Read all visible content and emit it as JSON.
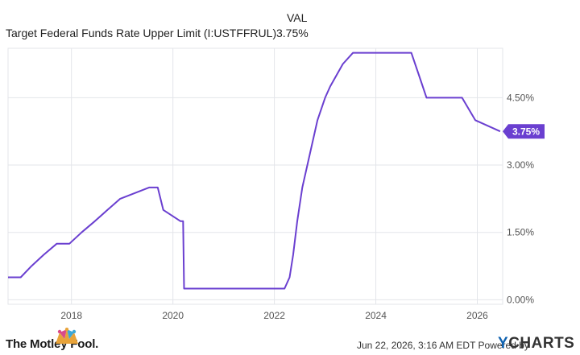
{
  "header": {
    "col_label": "VAL",
    "series_name": "Target Federal Funds Rate Upper Limit (I:USTFFRUL)",
    "series_value": "3.75%"
  },
  "footer": {
    "brand": "The Motley Fool.",
    "timestamp": "Jun 22, 2026, 3:16 AM EDT Powered by",
    "chart_provider": "YCHARTS"
  },
  "colors": {
    "line": "#6a3fd0",
    "grid": "#e3e5ea",
    "axis_text": "#555555",
    "badge": "#6a3fd0"
  },
  "chart_data": {
    "type": "line",
    "title": "",
    "xlabel": "",
    "ylabel": "",
    "x_ticks": [
      "2018",
      "2020",
      "2022",
      "2024",
      "2026"
    ],
    "y_ticks": [
      "0.00%",
      "1.50%",
      "3.00%",
      "4.50%"
    ],
    "xlim": [
      2016.75,
      2026.5
    ],
    "ylim": [
      -0.1,
      5.6
    ],
    "grid": true,
    "last_value_label": "3.75%",
    "series": [
      {
        "name": "Target Federal Funds Rate Upper Limit (I:USTFFRUL)",
        "x": [
          2016.75,
          2017.0,
          2017.21,
          2017.45,
          2017.71,
          2017.96,
          2018.2,
          2018.46,
          2018.71,
          2018.96,
          2019.53,
          2019.7,
          2019.81,
          2020.15,
          2020.2,
          2020.22,
          2021.0,
          2022.2,
          2022.3,
          2022.37,
          2022.45,
          2022.55,
          2022.7,
          2022.85,
          2023.0,
          2023.1,
          2023.35,
          2023.55,
          2023.65,
          2024.0,
          2024.7,
          2024.85,
          2025.0,
          2025.7,
          2025.96,
          2026.45
        ],
        "y": [
          0.5,
          0.5,
          0.75,
          1.0,
          1.25,
          1.25,
          1.5,
          1.75,
          2.0,
          2.25,
          2.5,
          2.5,
          2.0,
          1.75,
          1.75,
          0.25,
          0.25,
          0.25,
          0.5,
          1.0,
          1.75,
          2.5,
          3.25,
          4.0,
          4.5,
          4.75,
          5.25,
          5.5,
          5.5,
          5.5,
          5.5,
          5.0,
          4.5,
          4.5,
          4.0,
          3.75
        ]
      }
    ]
  }
}
